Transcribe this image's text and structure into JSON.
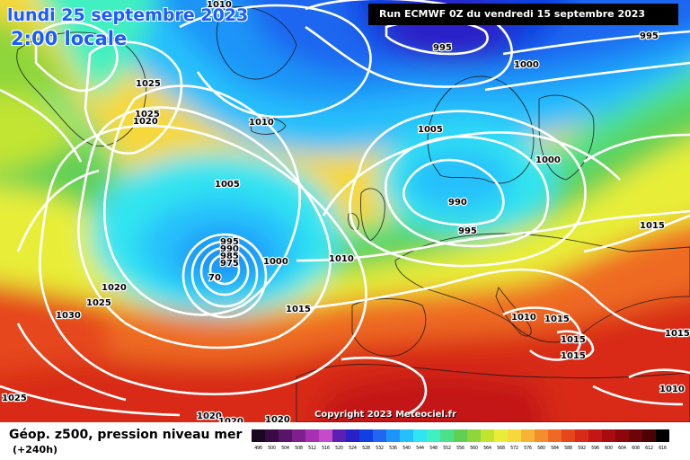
{
  "title": {
    "date": "lundi 25 septembre 2023",
    "time": "2:00 locale"
  },
  "run_info": "Run ECMWF 0Z du vendredi 15 septembre 2023",
  "copyright": "Copyright 2023 Meteociel.fr",
  "legend": {
    "field": "Géop. z500, pression niveau mer",
    "lead": "(+240h)",
    "scale": [
      {
        "label": "496",
        "color": "#1a0820"
      },
      {
        "label": "500",
        "color": "#3a0a44"
      },
      {
        "label": "504",
        "color": "#5a1466"
      },
      {
        "label": "508",
        "color": "#7e1f8e"
      },
      {
        "label": "512",
        "color": "#a62fb2"
      },
      {
        "label": "516",
        "color": "#c44cc8"
      },
      {
        "label": "520",
        "color": "#5b1fb2"
      },
      {
        "label": "524",
        "color": "#2a20c8"
      },
      {
        "label": "528",
        "color": "#1040e0"
      },
      {
        "label": "532",
        "color": "#1f66f0"
      },
      {
        "label": "536",
        "color": "#1f94f8"
      },
      {
        "label": "540",
        "color": "#25c0fc"
      },
      {
        "label": "544",
        "color": "#30e4f0"
      },
      {
        "label": "548",
        "color": "#40f0c0"
      },
      {
        "label": "552",
        "color": "#4ce08a"
      },
      {
        "label": "556",
        "color": "#5fd054"
      },
      {
        "label": "560",
        "color": "#8ed63a"
      },
      {
        "label": "564",
        "color": "#c2e430"
      },
      {
        "label": "568",
        "color": "#e8ee38"
      },
      {
        "label": "572",
        "color": "#f6d83a"
      },
      {
        "label": "576",
        "color": "#f6b434"
      },
      {
        "label": "580",
        "color": "#f48e2c"
      },
      {
        "label": "584",
        "color": "#ee6a24"
      },
      {
        "label": "588",
        "color": "#e6461c"
      },
      {
        "label": "592",
        "color": "#d82a18"
      },
      {
        "label": "596",
        "color": "#c41614"
      },
      {
        "label": "600",
        "color": "#a80c10"
      },
      {
        "label": "604",
        "color": "#8c060c"
      },
      {
        "label": "608",
        "color": "#6e0408"
      },
      {
        "label": "612",
        "color": "#4a0206"
      },
      {
        "label": "616",
        "color": "#000000"
      }
    ]
  },
  "isobars": [
    {
      "label": "995"
    },
    {
      "label": "995"
    },
    {
      "label": "1000"
    },
    {
      "label": "1010"
    },
    {
      "label": "1025"
    },
    {
      "label": "1025"
    },
    {
      "label": "1020"
    },
    {
      "label": "1010"
    },
    {
      "label": "1005"
    },
    {
      "label": "1005"
    },
    {
      "label": "1000"
    },
    {
      "label": "990"
    },
    {
      "label": "995"
    },
    {
      "label": "1015"
    },
    {
      "label": "995"
    },
    {
      "label": "990"
    },
    {
      "label": "985"
    },
    {
      "label": "975"
    },
    {
      "label": "1000"
    },
    {
      "label": "1010"
    },
    {
      "label": "1020"
    },
    {
      "label": "1025"
    },
    {
      "label": "1030"
    },
    {
      "label": "1015"
    },
    {
      "label": "1010"
    },
    {
      "label": "1015"
    },
    {
      "label": "1015"
    },
    {
      "label": "1015"
    },
    {
      "label": "1015"
    },
    {
      "label": "1010"
    },
    {
      "label": "1025"
    },
    {
      "label": "1020"
    },
    {
      "label": "1020"
    },
    {
      "label": "1020"
    },
    {
      "label": "70"
    }
  ]
}
